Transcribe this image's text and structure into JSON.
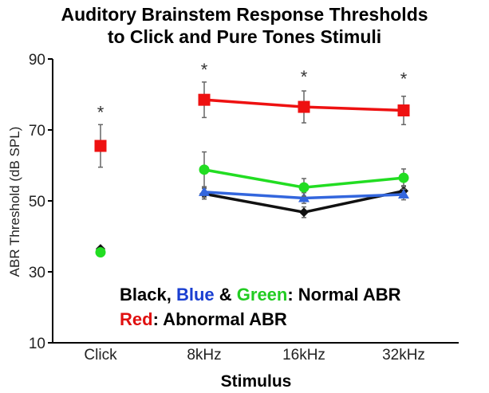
{
  "chart_data": {
    "type": "line",
    "title": [
      "Auditory Brainstem Response Thresholds",
      "to Click and Pure Tones Stimuli"
    ],
    "xlabel": "Stimulus",
    "ylabel": "ABR Threshold (dB SPL)",
    "categories": [
      "Click",
      "8kHz",
      "16kHz",
      "32kHz"
    ],
    "ylim": [
      10,
      90
    ],
    "yticks": [
      10,
      30,
      50,
      70,
      90
    ],
    "grid": false,
    "series": [
      {
        "color": "#111111",
        "marker": "diamond",
        "values": [
          36.5,
          52.0,
          46.8,
          52.8
        ],
        "errors": [
          0,
          1.5,
          1.5,
          1.5
        ],
        "connect_from": 1
      },
      {
        "color": "#3366dd",
        "marker": "triangle",
        "values": [
          null,
          52.5,
          50.8,
          51.8
        ],
        "errors": [
          0,
          1.5,
          1.5,
          1.5
        ],
        "connect_from": 1
      },
      {
        "color": "#22dd22",
        "marker": "circle",
        "values": [
          35.5,
          58.8,
          53.8,
          56.5
        ],
        "errors": [
          0,
          5.0,
          2.5,
          2.5
        ],
        "connect_from": 1
      },
      {
        "color": "#ee1111",
        "marker": "square",
        "values": [
          65.5,
          78.5,
          76.5,
          75.5
        ],
        "errors": [
          6.0,
          5.0,
          4.5,
          4.0
        ],
        "connect_from": 1
      }
    ],
    "significance": [
      {
        "category": "Click",
        "y": 75.5,
        "label": "*"
      },
      {
        "category": "8kHz",
        "y": 87.5,
        "label": "*"
      },
      {
        "category": "16kHz",
        "y": 85.5,
        "label": "*"
      },
      {
        "category": "32kHz",
        "y": 85.0,
        "label": "*"
      }
    ]
  },
  "legend": {
    "line1": [
      {
        "text": "Black",
        "color": "#000000"
      },
      {
        "text": ", ",
        "color": "#000000"
      },
      {
        "text": "Blue",
        "color": "#1a3fd1"
      },
      {
        "text": " & ",
        "color": "#000000"
      },
      {
        "text": "Green",
        "color": "#22cc22"
      },
      {
        "text": ": Normal ABR",
        "color": "#000000"
      }
    ],
    "line2": [
      {
        "text": "Red",
        "color": "#e01010"
      },
      {
        "text": ": Abnormal ABR",
        "color": "#000000"
      }
    ]
  }
}
